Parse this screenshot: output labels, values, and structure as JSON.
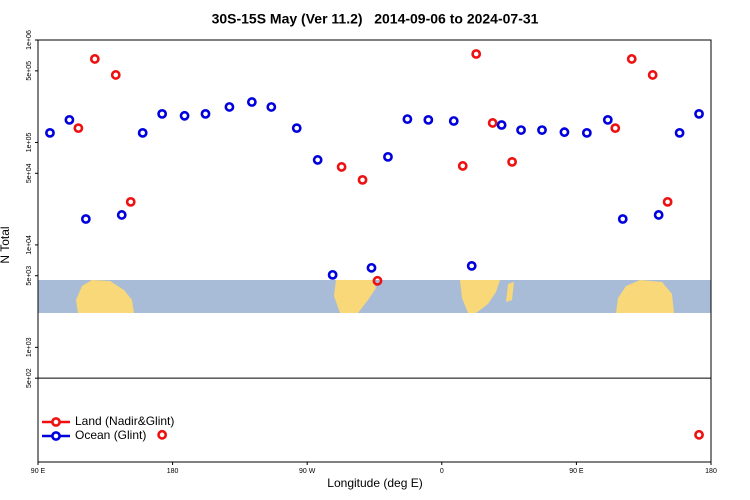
{
  "chart_data": {
    "type": "scatter",
    "title": "30S-15S May (Ver 11.2)   2014-09-06 to 2024-07-31",
    "xlabel": "Longitude (deg E)",
    "ylabel": "N Total",
    "log_y": true,
    "xlim": [
      90,
      540
    ],
    "ylim": [
      76,
      1000000
    ],
    "xticks": [
      {
        "value": 90,
        "label": "90 E"
      },
      180,
      {
        "value": 270,
        "label": "90 W"
      },
      {
        "value": 360,
        "label": "0"
      },
      {
        "value": 450,
        "label": "90 E"
      },
      {
        "value": 540,
        "label": "180"
      }
    ],
    "yticks": [
      {
        "value": 1000000,
        "label": "1e+06"
      },
      {
        "value": 500000,
        "label": "5e+05"
      },
      {
        "value": 100000,
        "label": "1e+05"
      },
      {
        "value": 50000,
        "label": "5e+04"
      },
      {
        "value": 10000,
        "label": "1e+04"
      },
      {
        "value": 5000,
        "label": "5e+03"
      },
      {
        "value": 1000,
        "label": "1e+03"
      },
      {
        "value": 500,
        "label": "5e+02"
      }
    ],
    "reference_line": 500,
    "legend": "bottom-left",
    "series": [
      {
        "name": "Land (Nadir&Glint)",
        "color": "#ee1111",
        "x": [
          117,
          128,
          142,
          152,
          173,
          293,
          307,
          317,
          374,
          383,
          394,
          407,
          476,
          487,
          501,
          511,
          532
        ],
        "values": [
          138000,
          653000,
          456000,
          26300,
          140,
          57700,
          43100,
          4460,
          59000,
          730000,
          155000,
          64600,
          138000,
          653000,
          456000,
          26300,
          140
        ]
      },
      {
        "name": "Ocean (Glint)",
        "color": "#0000dd",
        "x": [
          98,
          111,
          122,
          146,
          160,
          173,
          188,
          202,
          218,
          233,
          246,
          263,
          277,
          287,
          313,
          324,
          337,
          351,
          368,
          380,
          400,
          413,
          427,
          442,
          457,
          471,
          481,
          505,
          519,
          532
        ],
        "values": [
          124000,
          166000,
          17900,
          19600,
          124000,
          190000,
          182000,
          190000,
          222000,
          248000,
          222000,
          138000,
          67500,
          5100,
          5970,
          72300,
          169000,
          166000,
          162000,
          6240,
          148000,
          132000,
          132000,
          126000,
          124000,
          166000,
          17900,
          19600,
          124000,
          190000
        ]
      }
    ]
  }
}
